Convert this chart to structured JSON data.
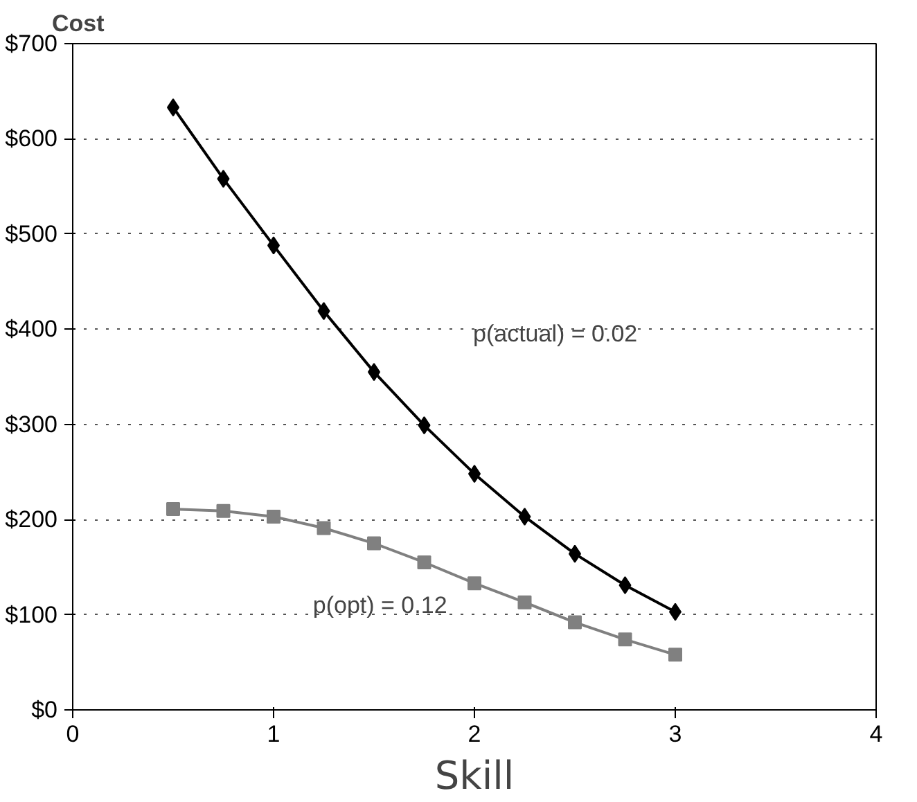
{
  "chart_data": {
    "type": "line",
    "ylabel": "Cost",
    "xlabel": "Skill",
    "x": [
      0.5,
      0.75,
      1,
      1.25,
      1.5,
      1.75,
      2,
      2.25,
      2.5,
      2.75,
      3
    ],
    "series": [
      {
        "color": "#000000",
        "marker": "diamond",
        "values": [
          633,
          558,
          488,
          419,
          355,
          299,
          248,
          203,
          164,
          131,
          103
        ]
      },
      {
        "color": "#808080",
        "marker": "square",
        "values": [
          211,
          209,
          203,
          191,
          175,
          155,
          133,
          113,
          92,
          74,
          58
        ]
      }
    ],
    "xlim": [
      0,
      4
    ],
    "xticks": [
      0,
      1,
      2,
      3,
      4
    ],
    "ylim": [
      0,
      700
    ],
    "yticks": [
      {
        "value": 0,
        "label": "$0"
      },
      {
        "value": 100,
        "label": "$100"
      },
      {
        "value": 200,
        "label": "$200"
      },
      {
        "value": 300,
        "label": "$300"
      },
      {
        "value": 400,
        "label": "$400"
      },
      {
        "value": 500,
        "label": "$500"
      },
      {
        "value": 600,
        "label": "$600"
      },
      {
        "value": 700,
        "label": "$700"
      }
    ],
    "grid": "y",
    "annotations": [
      "p(actual) = 0.02",
      "p(opt) = 0.12"
    ]
  }
}
